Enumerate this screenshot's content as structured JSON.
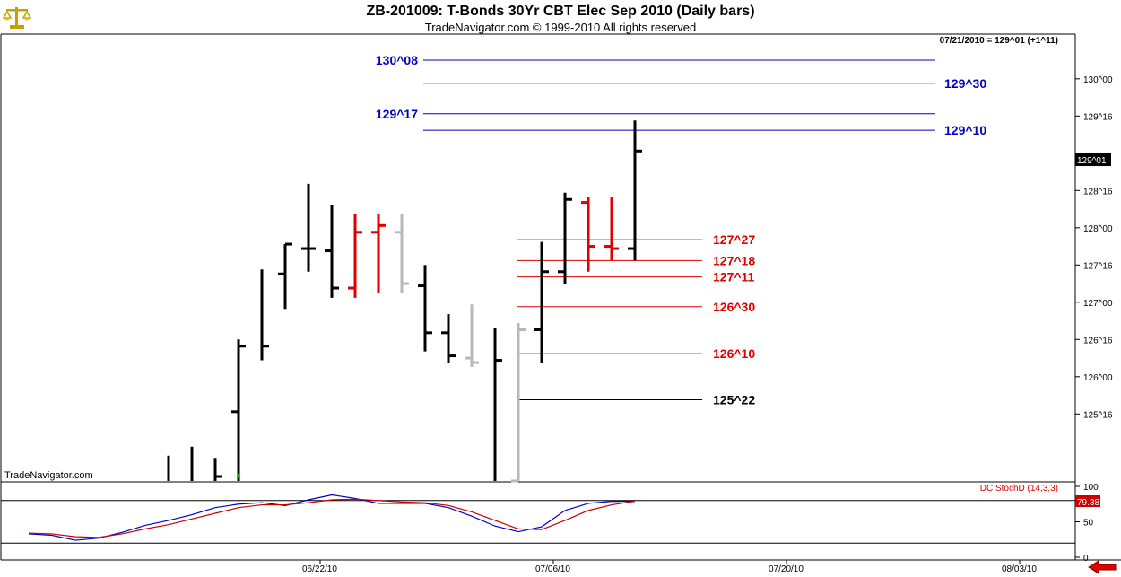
{
  "header": {
    "title": "ZB-201009:  T-Bonds 30Yr CBT Elec Sep 2010  (Daily bars)",
    "subtitle": "TradeNavigator.com © 1999-2010 All rights reserved"
  },
  "info_label": "07/21/2010 = 129^01 (+1^11)",
  "watermark": "TradeNavigator.com",
  "last_price_label": "129^01",
  "icons": [
    "scales-logo-icon",
    "red-left-arrow-icon"
  ],
  "colors": {
    "up_down_black": "#000000",
    "red_bar": "#e00000",
    "gray_bar": "#b8b8b8",
    "blue_level": "#0000cc",
    "red_level": "#e00000",
    "stoch_k": "#0000cc",
    "stoch_d": "#cc0000"
  },
  "chart_data": [
    {
      "type": "bar",
      "title": "ZB-201009:  T-Bonds 30Yr CBT Elec Sep 2010  (Daily bars)",
      "subtype": "OHLC",
      "ylim": [
        124.6,
        130.6
      ],
      "y_tick_labels": [
        "125^16",
        "126^00",
        "126^16",
        "127^00",
        "127^16",
        "128^00",
        "128^16",
        "129^16",
        "130^00"
      ],
      "y_tick_values": [
        125.5,
        126.0,
        126.5,
        127.0,
        127.5,
        128.0,
        128.5,
        129.5,
        130.0
      ],
      "x_tick_labels": [
        "06/22/10",
        "07/06/10",
        "07/20/10",
        "08/03/10"
      ],
      "x_tick_positions": [
        6.5,
        16.5,
        26.5,
        36.5
      ],
      "bars": [
        {
          "i": 0,
          "high": 124.94,
          "low": 124.6,
          "open": null,
          "close": null,
          "color": "black"
        },
        {
          "i": 1,
          "high": 125.06,
          "low": 124.6,
          "open": null,
          "close": null,
          "color": "black"
        },
        {
          "i": 2,
          "high": 124.91,
          "low": 124.6,
          "open": null,
          "close": 124.66,
          "color": "black"
        },
        {
          "i": 3,
          "high": 126.5,
          "low": 124.6,
          "open": 125.53,
          "close": 126.41,
          "color": "black"
        },
        {
          "i": 4,
          "high": 127.44,
          "low": 126.22,
          "open": null,
          "close": 126.41,
          "color": "black"
        },
        {
          "i": 5,
          "high": 127.78,
          "low": 126.91,
          "open": 127.38,
          "close": 127.78,
          "color": "black"
        },
        {
          "i": 6,
          "high": 128.59,
          "low": 127.41,
          "open": 127.72,
          "close": 127.72,
          "color": "black"
        },
        {
          "i": 7,
          "high": 128.31,
          "low": 127.06,
          "open": 127.69,
          "close": 127.19,
          "color": "black"
        },
        {
          "i": 8,
          "high": 128.19,
          "low": 127.06,
          "open": 127.19,
          "close": 127.94,
          "color": "red"
        },
        {
          "i": 9,
          "high": 128.19,
          "low": 127.13,
          "open": 127.94,
          "close": 128.03,
          "color": "red"
        },
        {
          "i": 10,
          "high": 128.19,
          "low": 127.13,
          "open": 127.94,
          "close": 127.25,
          "color": "gray"
        },
        {
          "i": 11,
          "high": 127.5,
          "low": 126.34,
          "open": 127.22,
          "close": 126.59,
          "color": "black"
        },
        {
          "i": 12,
          "high": 126.84,
          "low": 126.19,
          "open": 126.59,
          "close": 126.28,
          "color": "black"
        },
        {
          "i": 13,
          "high": 126.97,
          "low": 126.13,
          "open": 126.25,
          "close": 126.19,
          "color": "gray"
        },
        {
          "i": 14,
          "high": 126.66,
          "low": 124.6,
          "open": null,
          "close": 126.22,
          "color": "black"
        },
        {
          "i": 15,
          "high": 126.72,
          "low": 124.6,
          "open": 124.6,
          "close": 126.63,
          "color": "gray"
        },
        {
          "i": 16,
          "high": 127.81,
          "low": 126.19,
          "open": 126.63,
          "close": 127.41,
          "color": "black"
        },
        {
          "i": 17,
          "high": 128.47,
          "low": 127.25,
          "open": 127.41,
          "close": 128.38,
          "color": "black"
        },
        {
          "i": 18,
          "high": 128.41,
          "low": 127.41,
          "open": 128.34,
          "close": 127.75,
          "color": "red"
        },
        {
          "i": 19,
          "high": 128.41,
          "low": 127.56,
          "open": 127.75,
          "close": 127.72,
          "color": "red"
        },
        {
          "i": 20,
          "high": 129.44,
          "low": 127.56,
          "open": 127.72,
          "close": 129.03,
          "color": "black"
        }
      ],
      "first_bar_marker_color": "#00cc00",
      "levels": [
        {
          "label": "130^08",
          "value": 130.25,
          "color": "blue",
          "label_side": "left"
        },
        {
          "label": "129^30",
          "value": 129.94,
          "color": "blue",
          "label_side": "right"
        },
        {
          "label": "129^17",
          "value": 129.53,
          "color": "blue",
          "label_side": "left"
        },
        {
          "label": "129^10",
          "value": 129.31,
          "color": "blue",
          "label_side": "right"
        },
        {
          "label": "127^27",
          "value": 127.84,
          "color": "red",
          "label_side": "right"
        },
        {
          "label": "127^18",
          "value": 127.56,
          "color": "red",
          "label_side": "right"
        },
        {
          "label": "127^11",
          "value": 127.34,
          "color": "red",
          "label_side": "right"
        },
        {
          "label": "126^30",
          "value": 126.94,
          "color": "red",
          "label_side": "right"
        },
        {
          "label": "126^10",
          "value": 126.31,
          "color": "red",
          "label_side": "right"
        },
        {
          "label": "125^22",
          "value": 125.69,
          "color": "black",
          "label_side": "right"
        }
      ]
    },
    {
      "type": "line",
      "title": "DC StochD (14,3,3)",
      "ylim": [
        0,
        100
      ],
      "y_tick_labels": [
        "100",
        "50",
        "0"
      ],
      "y_tick_values": [
        100,
        50,
        0
      ],
      "reference_lines": [
        80,
        20
      ],
      "last_value_label": "79.38",
      "x": [
        -6,
        -5,
        -4,
        -3,
        -2,
        -1,
        0,
        1,
        2,
        3,
        4,
        5,
        6,
        7,
        8,
        9,
        10,
        11,
        12,
        13,
        14,
        15,
        16,
        17,
        18,
        19,
        20
      ],
      "series": [
        {
          "color": "blue",
          "values": [
            33,
            31,
            24,
            27,
            35,
            45,
            52,
            60,
            70,
            75,
            77,
            73,
            81,
            88,
            83,
            76,
            76,
            76,
            70,
            58,
            44,
            36,
            43,
            66,
            76,
            79,
            79
          ]
        },
        {
          "color": "red",
          "values": [
            34,
            33,
            29,
            28,
            33,
            40,
            46,
            54,
            62,
            70,
            74,
            74,
            77,
            81,
            82,
            80,
            78,
            77,
            73,
            64,
            52,
            40,
            39,
            52,
            66,
            74,
            79
          ]
        }
      ]
    }
  ]
}
